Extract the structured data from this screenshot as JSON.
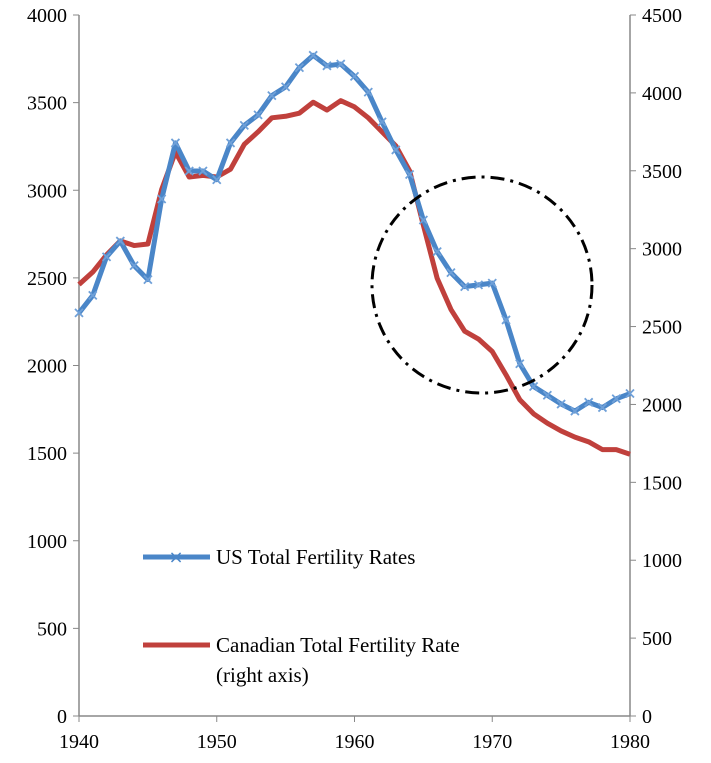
{
  "chart_data": {
    "type": "line",
    "title": "",
    "xlabel": "",
    "ylabel": "",
    "xlim": [
      1940,
      1980
    ],
    "ylim": [
      0,
      4000
    ],
    "y2lim": [
      0,
      4500
    ],
    "x_ticks": [
      "1940",
      "1950",
      "1960",
      "1970",
      "1980"
    ],
    "y_ticks": [
      "0",
      "500",
      "1000",
      "1500",
      "2000",
      "2500",
      "3000",
      "3500",
      "4000"
    ],
    "y2_ticks": [
      "0",
      "500",
      "1000",
      "1500",
      "2000",
      "2500",
      "3000",
      "3500",
      "4000",
      "4500"
    ],
    "grid": false,
    "legend_position": "lower-left",
    "x": [
      1940,
      1941,
      1942,
      1943,
      1944,
      1945,
      1946,
      1947,
      1948,
      1949,
      1950,
      1951,
      1952,
      1953,
      1954,
      1955,
      1956,
      1957,
      1958,
      1959,
      1960,
      1961,
      1962,
      1963,
      1964,
      1965,
      1966,
      1967,
      1968,
      1969,
      1970,
      1971,
      1972,
      1973,
      1974,
      1975,
      1976,
      1977,
      1978,
      1979,
      1980
    ],
    "series": [
      {
        "name": "US Total Fertility Rates",
        "axis": "left",
        "color": "#4a86c8",
        "marker": "x",
        "values": [
          2300,
          2400,
          2620,
          2710,
          2570,
          2490,
          2950,
          3270,
          3110,
          3110,
          3060,
          3270,
          3370,
          3430,
          3540,
          3590,
          3700,
          3770,
          3710,
          3720,
          3650,
          3560,
          3390,
          3230,
          3090,
          2830,
          2650,
          2530,
          2450,
          2460,
          2470,
          2260,
          2010,
          1880,
          1830,
          1780,
          1740,
          1790,
          1760,
          1810,
          1840
        ]
      },
      {
        "name": "Canadian Total Fertility Rate",
        "name_line2": "(right axis)",
        "axis": "right",
        "color": "#c0403c",
        "marker": "none",
        "values": [
          2770,
          2850,
          2960,
          3050,
          3020,
          3030,
          3380,
          3620,
          3460,
          3470,
          3460,
          3510,
          3670,
          3750,
          3840,
          3850,
          3870,
          3940,
          3890,
          3950,
          3910,
          3840,
          3750,
          3660,
          3500,
          3150,
          2810,
          2610,
          2470,
          2420,
          2340,
          2190,
          2030,
          1940,
          1880,
          1830,
          1790,
          1760,
          1710,
          1710,
          1680
        ]
      }
    ],
    "annotations": [
      {
        "type": "dash-dot-circle",
        "center_x": 1969.5,
        "center_y": 2450
      }
    ]
  }
}
